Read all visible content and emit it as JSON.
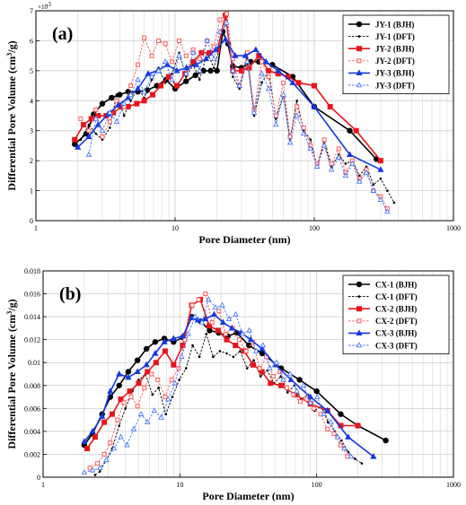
{
  "chart_data": [
    {
      "type": "line",
      "panel_label": "(a)",
      "xlabel": "Pore Diameter (nm)",
      "ylabel": "Differential Pore Volume (cm3/g)",
      "ylabel_main": "Differential Pore Volume (cm",
      "ylabel_sup": "3",
      "ylabel_tail": "/g)",
      "y_multiplier_label": "×10",
      "y_multiplier_exp": "-3",
      "xscale": "log",
      "xlim": [
        1,
        1000
      ],
      "ylim": [
        0,
        7
      ],
      "x_ticks": [
        1,
        10,
        100,
        1000
      ],
      "x_tick_labels": [
        "1",
        "10",
        "100",
        "1000"
      ],
      "y_ticks": [
        0,
        1,
        2,
        3,
        4,
        5,
        6,
        7
      ],
      "y_tick_labels": [
        "0",
        "1",
        "2",
        "3",
        "4",
        "5",
        "6",
        "7"
      ],
      "grid": true,
      "legend_position": "top-right",
      "series": [
        {
          "name": "JY-1 (BJH)",
          "color": "#000000",
          "marker": "circle",
          "dashed": false,
          "x": [
            1.9,
            2.3,
            2.6,
            3.0,
            3.5,
            4.0,
            4.6,
            5.4,
            6.3,
            7.4,
            8.6,
            10,
            12,
            14,
            16,
            18,
            20,
            22,
            24,
            26,
            30,
            35,
            40,
            50,
            70,
            100,
            180,
            280
          ],
          "y": [
            2.55,
            2.9,
            3.55,
            3.9,
            4.1,
            4.2,
            4.3,
            4.3,
            4.35,
            4.5,
            4.7,
            4.4,
            4.65,
            4.85,
            5.0,
            5.0,
            5.0,
            6.3,
            5.9,
            5.15,
            5.1,
            5.3,
            5.3,
            5.2,
            4.8,
            3.8,
            3.0,
            2.05
          ]
        },
        {
          "name": "JY-1 (DFT)",
          "color": "#000000",
          "marker": "dot",
          "dashed": true,
          "x": [
            2.1,
            2.4,
            2.7,
            3.0,
            3.4,
            3.8,
            4.3,
            4.8,
            5.4,
            6.0,
            6.8,
            7.6,
            8.5,
            9.5,
            10.7,
            12,
            13.5,
            15,
            17,
            19,
            21,
            23.5,
            26,
            29,
            33,
            37,
            42,
            47,
            53,
            60,
            67,
            75,
            84,
            94,
            105,
            118,
            133,
            150,
            168,
            188,
            211,
            237,
            266,
            300,
            335,
            375
          ],
          "y": [
            2.7,
            3.2,
            2.9,
            2.7,
            3.1,
            4.2,
            3.5,
            4.0,
            4.4,
            4.1,
            4.7,
            5.1,
            4.6,
            4.9,
            5.6,
            4.8,
            5.2,
            4.7,
            5.6,
            5.1,
            5.8,
            6.7,
            4.8,
            4.4,
            5.4,
            3.5,
            4.6,
            5.0,
            3.4,
            4.2,
            2.7,
            4.0,
            3.0,
            2.7,
            1.8,
            2.6,
            1.8,
            2.2,
            1.9,
            2.0,
            1.5,
            1.8,
            1.2,
            1.4,
            1.0,
            0.6
          ]
        },
        {
          "name": "JY-2 (BJH)",
          "color": "#e8141b",
          "marker": "square",
          "dashed": false,
          "x": [
            1.9,
            2.2,
            2.5,
            2.8,
            3.2,
            3.6,
            4.1,
            4.6,
            5.3,
            6.0,
            6.9,
            7.9,
            9.0,
            10.3,
            11.8,
            13.5,
            15.5,
            17.7,
            20.2,
            23,
            26,
            30,
            34,
            40,
            47,
            55,
            65,
            77,
            100,
            130,
            200,
            300
          ],
          "y": [
            2.7,
            3.2,
            3.4,
            3.5,
            3.5,
            3.6,
            3.8,
            3.8,
            3.9,
            4.0,
            4.2,
            4.5,
            4.8,
            4.5,
            4.9,
            5.3,
            5.6,
            5.6,
            5.7,
            6.85,
            5.0,
            5.0,
            5.1,
            5.5,
            5.0,
            4.9,
            4.8,
            4.6,
            4.5,
            3.8,
            3.0,
            2.0
          ]
        },
        {
          "name": "JY-2 (DFT)",
          "color": "#ff5a5a",
          "marker": "open-square",
          "dashed": true,
          "x": [
            2.1,
            2.4,
            2.7,
            3.0,
            3.4,
            3.8,
            4.3,
            4.8,
            5.4,
            6.0,
            6.8,
            7.6,
            8.5,
            9.5,
            10.7,
            12,
            13.5,
            15,
            17,
            19,
            21,
            23.5,
            26,
            29,
            33,
            37,
            42,
            47,
            53,
            60,
            67,
            75,
            84,
            94,
            105,
            118,
            133,
            150,
            168,
            188,
            211,
            237,
            266,
            300,
            335
          ],
          "y": [
            3.4,
            3.0,
            3.7,
            2.8,
            3.3,
            4.0,
            3.8,
            4.5,
            5.2,
            6.1,
            5.5,
            6.0,
            5.9,
            5.3,
            6.0,
            5.5,
            5.7,
            5.4,
            6.0,
            5.8,
            6.7,
            6.9,
            5.4,
            4.5,
            5.6,
            3.7,
            5.3,
            4.8,
            3.5,
            4.6,
            2.8,
            3.8,
            3.1,
            2.5,
            1.9,
            2.7,
            1.9,
            2.4,
            1.6,
            2.0,
            1.4,
            1.7,
            1.0,
            0.8,
            0.4
          ]
        },
        {
          "name": "JY-3 (BJH)",
          "color": "#1538e0",
          "marker": "triangle",
          "dashed": false,
          "x": [
            2.0,
            2.4,
            2.8,
            3.3,
            3.9,
            4.6,
            5.4,
            6.4,
            7.5,
            8.8,
            10.3,
            12.1,
            14.2,
            16.7,
            19.6,
            23,
            27,
            32,
            38,
            45,
            55,
            70,
            100,
            180,
            300
          ],
          "y": [
            2.45,
            2.8,
            3.2,
            3.55,
            3.85,
            4.1,
            4.4,
            4.9,
            5.0,
            5.2,
            5.0,
            5.1,
            5.2,
            5.4,
            5.7,
            6.05,
            5.5,
            5.5,
            5.7,
            5.3,
            5.0,
            4.6,
            3.8,
            2.2,
            1.7
          ]
        },
        {
          "name": "JY-3 (DFT)",
          "color": "#4a78ff",
          "marker": "open-triangle",
          "dashed": true,
          "x": [
            2.4,
            2.7,
            3.0,
            3.4,
            3.8,
            4.3,
            4.8,
            5.4,
            6.0,
            6.8,
            7.6,
            8.5,
            9.5,
            10.7,
            12,
            13.5,
            15,
            17,
            19,
            21,
            23.5,
            26,
            29,
            33,
            37,
            42,
            47,
            53,
            60,
            67,
            75,
            84,
            94,
            105,
            118,
            133,
            150,
            168,
            188,
            211,
            237,
            266,
            300,
            335
          ],
          "y": [
            2.2,
            3.4,
            3.0,
            3.6,
            3.3,
            3.9,
            4.2,
            4.7,
            4.3,
            4.8,
            5.0,
            5.3,
            4.7,
            5.5,
            4.9,
            5.6,
            5.0,
            6.0,
            5.4,
            6.3,
            6.6,
            5.0,
            4.5,
            5.3,
            3.6,
            4.9,
            4.4,
            3.2,
            4.2,
            2.6,
            3.5,
            2.9,
            2.4,
            1.8,
            2.5,
            1.7,
            2.1,
            1.5,
            1.9,
            1.3,
            1.6,
            1.0,
            0.7,
            0.3
          ]
        }
      ]
    },
    {
      "type": "line",
      "panel_label": "(b)",
      "xlabel": "Pore Diameter (nm)",
      "ylabel": "Differential Pore Volume (cm3/g)",
      "ylabel_main": "Differential Pore Volume (cm",
      "ylabel_sup": "3",
      "ylabel_tail": "/g)",
      "xscale": "log",
      "xlim": [
        1,
        1000
      ],
      "ylim": [
        0,
        0.018
      ],
      "x_ticks": [
        1,
        10,
        100,
        1000
      ],
      "x_tick_labels": [
        "1",
        "10",
        "100",
        "1000"
      ],
      "y_ticks": [
        0,
        0.002,
        0.004,
        0.006,
        0.008,
        0.01,
        0.012,
        0.014,
        0.016,
        0.018
      ],
      "y_tick_labels": [
        "0",
        "0.002",
        "0.004",
        "0.006",
        "0.008",
        "0.01",
        "0.012",
        "0.014",
        "0.016",
        "0.018"
      ],
      "grid": true,
      "legend_position": "top-right",
      "series": [
        {
          "name": "CX-1 (BJH)",
          "color": "#000000",
          "marker": "circle",
          "dashed": false,
          "x": [
            2.0,
            2.3,
            2.7,
            3.1,
            3.6,
            4.2,
            4.9,
            5.7,
            6.6,
            7.7,
            9.0,
            10.5,
            12.2,
            14.2,
            16.5,
            19.2,
            22.4,
            26,
            32,
            40,
            55,
            75,
            100,
            150,
            200,
            320
          ],
          "y": [
            0.0028,
            0.0038,
            0.0055,
            0.007,
            0.008,
            0.0092,
            0.0102,
            0.0112,
            0.0118,
            0.0121,
            0.0118,
            0.0122,
            0.014,
            0.0136,
            0.0128,
            0.0126,
            0.0123,
            0.0126,
            0.0115,
            0.0108,
            0.0095,
            0.0085,
            0.0075,
            0.0055,
            0.0045,
            0.0032
          ]
        },
        {
          "name": "CX-1 (DFT)",
          "color": "#000000",
          "marker": "dot",
          "dashed": true,
          "x": [
            2.4,
            2.6,
            2.9,
            3.2,
            3.6,
            4.0,
            4.5,
            5.0,
            5.6,
            6.3,
            7.0,
            7.9,
            8.8,
            9.9,
            11.1,
            12.4,
            13.9,
            15.6,
            17.5,
            19.6,
            22,
            24.6,
            27.6,
            31,
            34.7,
            38.9,
            43.6,
            48.8,
            54.7,
            61.3,
            68.7,
            77,
            86.3,
            96.7,
            108,
            121,
            136,
            152,
            170,
            191,
            214
          ],
          "y": [
            0.0002,
            0.0005,
            0.0015,
            0.0025,
            0.0045,
            0.006,
            0.0075,
            0.0085,
            0.009,
            0.0072,
            0.0078,
            0.0055,
            0.007,
            0.0085,
            0.0095,
            0.0115,
            0.0105,
            0.0125,
            0.0105,
            0.011,
            0.0108,
            0.0105,
            0.011,
            0.0095,
            0.0102,
            0.0088,
            0.0093,
            0.0082,
            0.0088,
            0.0074,
            0.008,
            0.0068,
            0.0072,
            0.0058,
            0.0062,
            0.0048,
            0.004,
            0.0032,
            0.0022,
            0.0016,
            0.0012
          ]
        },
        {
          "name": "CX-2 (BJH)",
          "color": "#e8141b",
          "marker": "square",
          "dashed": false,
          "x": [
            2.1,
            2.4,
            2.8,
            3.2,
            3.7,
            4.3,
            5.0,
            5.8,
            6.7,
            7.8,
            9.0,
            10.5,
            12.2,
            14.1,
            16.4,
            19,
            22,
            25.5,
            29.6,
            34.3,
            39.8,
            46,
            55,
            70,
            90,
            120,
            150,
            200
          ],
          "y": [
            0.0025,
            0.0035,
            0.0048,
            0.0055,
            0.0068,
            0.0075,
            0.0082,
            0.0092,
            0.01,
            0.011,
            0.0098,
            0.0115,
            0.015,
            0.0155,
            0.0132,
            0.0128,
            0.012,
            0.0115,
            0.011,
            0.0098,
            0.0092,
            0.0082,
            0.008,
            0.0072,
            0.0064,
            0.0058,
            0.0045,
            0.0045
          ]
        },
        {
          "name": "CX-2 (DFT)",
          "color": "#ff5a5a",
          "marker": "open-square",
          "dashed": true,
          "x": [
            2.2,
            2.5,
            2.8,
            3.1,
            3.5,
            3.9,
            4.4,
            4.9,
            5.5,
            6.2,
            6.9,
            7.8,
            8.7,
            9.8,
            10.9,
            12.3,
            13.7,
            15.4,
            17.2,
            19.3,
            21.6,
            24.3,
            27.2,
            30.5,
            34.2,
            38.3,
            42.9,
            48.1,
            53.9,
            60.4,
            67.7,
            75.8,
            84.9,
            95.2,
            107,
            120,
            134,
            150,
            168
          ],
          "y": [
            0.0008,
            0.0012,
            0.002,
            0.003,
            0.005,
            0.0065,
            0.007,
            0.0062,
            0.0078,
            0.009,
            0.0085,
            0.007,
            0.0085,
            0.0095,
            0.012,
            0.015,
            0.0155,
            0.016,
            0.0135,
            0.0145,
            0.0125,
            0.013,
            0.012,
            0.011,
            0.0118,
            0.0095,
            0.0105,
            0.0088,
            0.0092,
            0.0078,
            0.0072,
            0.0066,
            0.0068,
            0.006,
            0.0055,
            0.0042,
            0.0038,
            0.0028,
            0.0018
          ]
        },
        {
          "name": "CX-3 (BJH)",
          "color": "#1538e0",
          "marker": "triangle",
          "dashed": false,
          "x": [
            2.0,
            2.3,
            2.7,
            3.1,
            3.6,
            4.2,
            4.9,
            5.7,
            6.6,
            7.7,
            9.0,
            10.5,
            12.2,
            13.5,
            15.3,
            17.8,
            20.7,
            24,
            28,
            33,
            40,
            50,
            65,
            90,
            120,
            170,
            260
          ],
          "y": [
            0.0031,
            0.004,
            0.0053,
            0.0075,
            0.009,
            0.0087,
            0.0092,
            0.0098,
            0.0108,
            0.0118,
            0.0121,
            0.0123,
            0.0139,
            0.0137,
            0.0138,
            0.0142,
            0.0135,
            0.013,
            0.0126,
            0.012,
            0.0112,
            0.0098,
            0.0085,
            0.007,
            0.0058,
            0.0035,
            0.0018
          ]
        },
        {
          "name": "CX-3 (DFT)",
          "color": "#4a78ff",
          "marker": "open-triangle",
          "dashed": true,
          "x": [
            2.0,
            2.3,
            2.6,
            2.9,
            3.3,
            3.7,
            4.1,
            4.6,
            5.2,
            5.8,
            6.5,
            7.3,
            8.2,
            9.2,
            10.3,
            11.5,
            12.9,
            14.5,
            16.2,
            18.2,
            20.4,
            22.9,
            25.6,
            28.7,
            32.2,
            36.1,
            40.5,
            45.4,
            50.9,
            57,
            63.9,
            71.6,
            80.3,
            90,
            101,
            113,
            127,
            142,
            159,
            178
          ],
          "y": [
            0.0004,
            0.0006,
            0.0008,
            0.0015,
            0.0025,
            0.0035,
            0.0028,
            0.0042,
            0.0055,
            0.0048,
            0.0058,
            0.0052,
            0.0068,
            0.0082,
            0.0105,
            0.0125,
            0.014,
            0.0135,
            0.0155,
            0.0148,
            0.015,
            0.0138,
            0.0142,
            0.0125,
            0.0128,
            0.011,
            0.0115,
            0.0095,
            0.01,
            0.0085,
            0.009,
            0.0075,
            0.008,
            0.0065,
            0.007,
            0.0055,
            0.0048,
            0.0035,
            0.0025,
            0.0018
          ]
        }
      ]
    }
  ]
}
